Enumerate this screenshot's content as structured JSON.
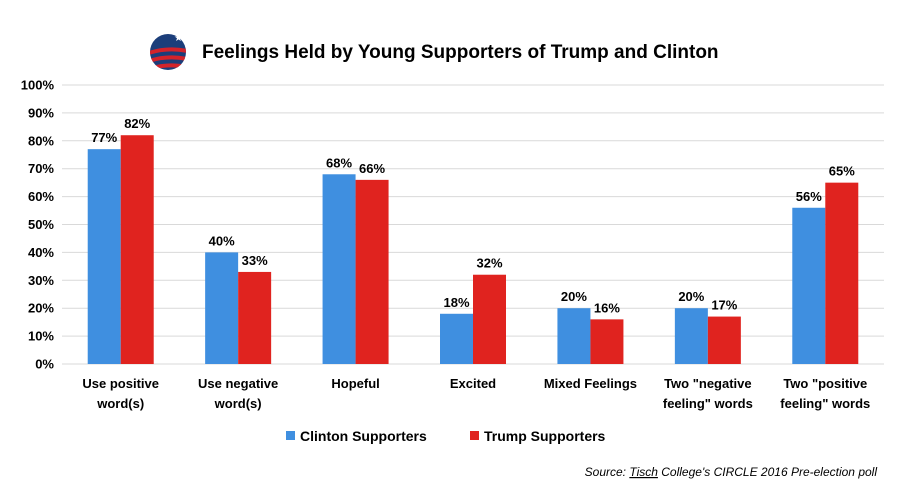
{
  "colors": {
    "clinton": "#3f8fe0",
    "trump": "#e0231f",
    "grid": "#d9d9d9",
    "logo_blue": "#1c3e7a",
    "logo_red": "#d4232a"
  },
  "icons": {
    "logo": "circle-flag-logo"
  },
  "source_prefix": "Source: ",
  "source_name": "Tisch",
  "source_rest": " College's CIRCLE 2016 Pre-election poll",
  "chart_data": {
    "type": "bar",
    "title": "Feelings Held by Young Supporters of Trump and Clinton",
    "xlabel": "",
    "ylabel": "",
    "ylim": [
      0,
      100
    ],
    "yticks": [
      0,
      10,
      20,
      30,
      40,
      50,
      60,
      70,
      80,
      90,
      100
    ],
    "ytick_labels": [
      "0%",
      "10%",
      "20%",
      "30%",
      "40%",
      "50%",
      "60%",
      "70%",
      "80%",
      "90%",
      "100%"
    ],
    "grid": true,
    "legend_position": "bottom",
    "categories": [
      [
        "Use positive",
        "word(s)"
      ],
      [
        "Use negative",
        "word(s)"
      ],
      [
        "Hopeful"
      ],
      [
        "Excited"
      ],
      [
        "Mixed Feelings"
      ],
      [
        "Two \"negative",
        "feeling\" words"
      ],
      [
        "Two \"positive",
        "feeling\" words"
      ]
    ],
    "series": [
      {
        "name": "Clinton Supporters",
        "values": [
          77,
          40,
          68,
          18,
          20,
          20,
          56
        ],
        "labels": [
          "77%",
          "40%",
          "68%",
          "18%",
          "20%",
          "20%",
          "56%"
        ]
      },
      {
        "name": "Trump Supporters",
        "values": [
          82,
          33,
          66,
          32,
          16,
          17,
          65
        ],
        "labels": [
          "82%",
          "33%",
          "66%",
          "32%",
          "16%",
          "17%",
          "65%"
        ]
      }
    ]
  }
}
